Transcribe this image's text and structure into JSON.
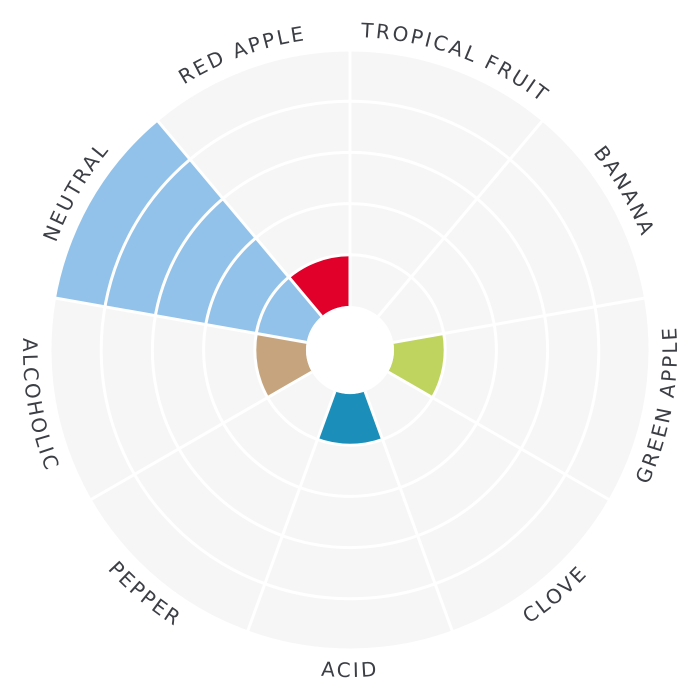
{
  "chart_data": {
    "type": "polar-bar",
    "title": "",
    "max_level": 5,
    "categories": [
      "TROPICAL FRUIT",
      "BANANA",
      "GREEN APPLE",
      "CLOVE",
      "ACID",
      "PEPPER",
      "ALCOHOLIC",
      "NEUTRAL",
      "RED APPLE"
    ],
    "values": [
      0,
      0,
      1,
      0,
      1,
      0,
      1,
      5,
      1
    ],
    "colors": [
      "#e3e3e3",
      "#e3e3e3",
      "#bfd35f",
      "#e3e3e3",
      "#1b8fb9",
      "#e3e3e3",
      "#c6a57e",
      "#92c2e9",
      "#e0002a"
    ],
    "background_color": "#f6f6f6",
    "ring_color": "#ffffff",
    "grid": true,
    "legend": "none"
  }
}
